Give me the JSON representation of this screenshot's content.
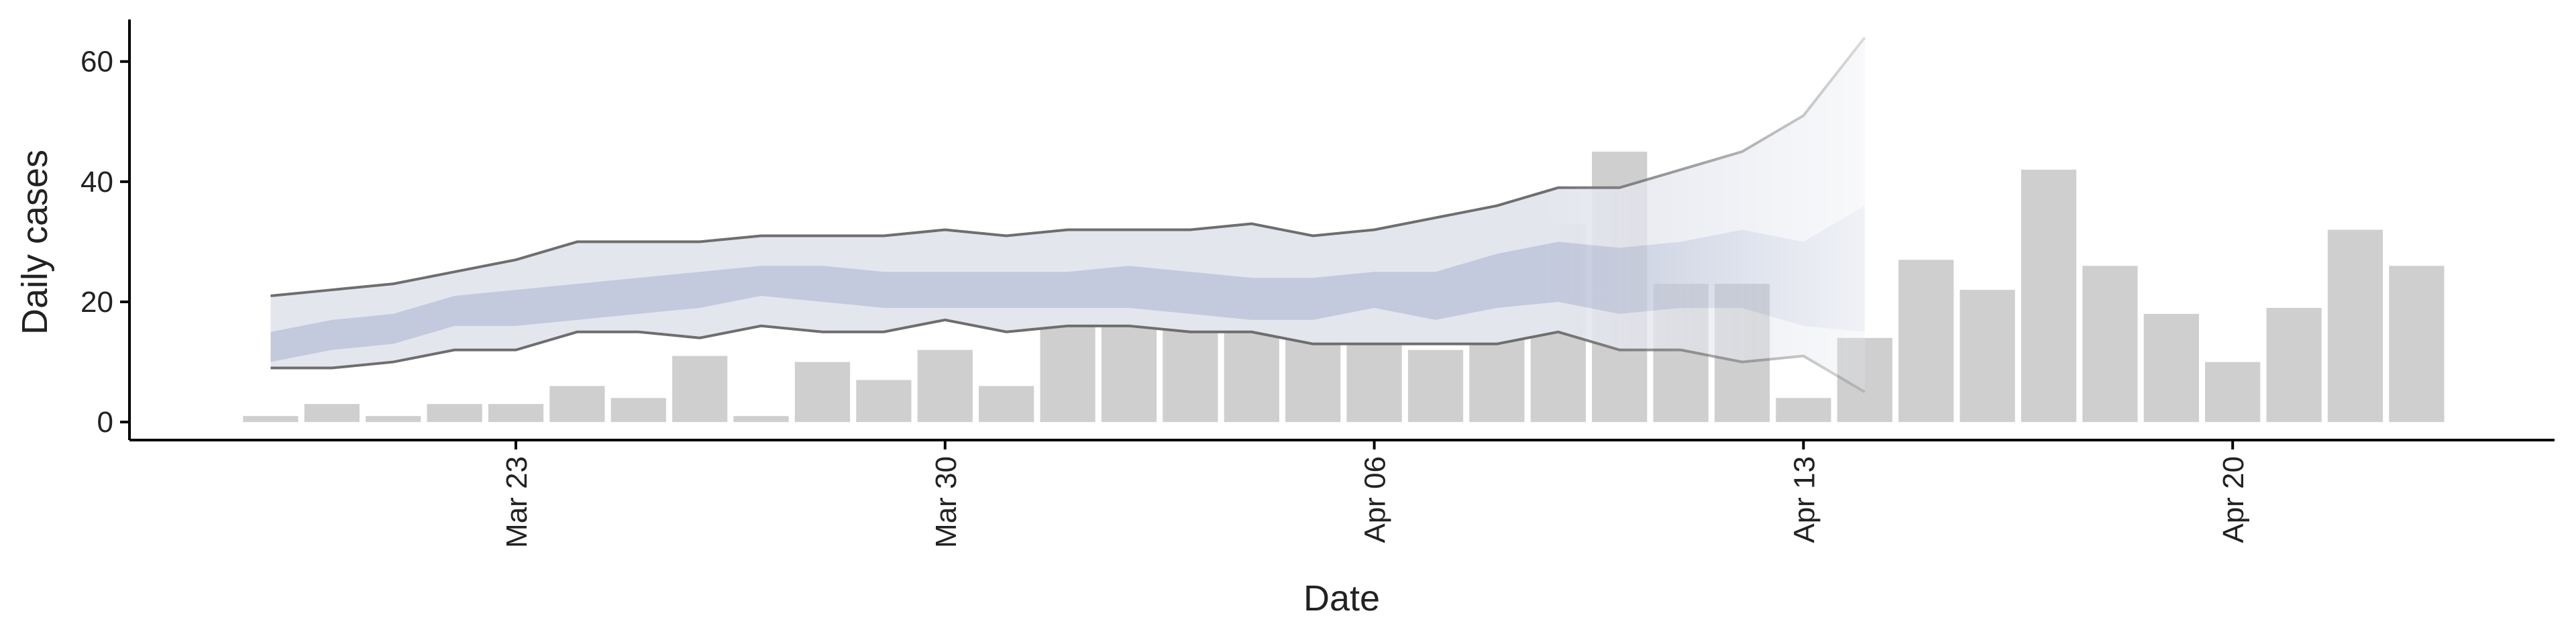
{
  "chart_data": {
    "type": "bar-band",
    "x_label": "Date",
    "y_label": "Daily cases",
    "categories": [
      "Mar 19",
      "Mar 20",
      "Mar 21",
      "Mar 22",
      "Mar 23",
      "Mar 24",
      "Mar 25",
      "Mar 26",
      "Mar 27",
      "Mar 28",
      "Mar 29",
      "Mar 30",
      "Mar 31",
      "Apr 01",
      "Apr 02",
      "Apr 03",
      "Apr 04",
      "Apr 05",
      "Apr 06",
      "Apr 07",
      "Apr 08",
      "Apr 09",
      "Apr 10",
      "Apr 11",
      "Apr 12",
      "Apr 13",
      "Apr 14",
      "Apr 15",
      "Apr 16",
      "Apr 17",
      "Apr 18",
      "Apr 19",
      "Apr 20",
      "Apr 21",
      "Apr 22",
      "Apr 23"
    ],
    "values": [
      1,
      3,
      1,
      3,
      3,
      6,
      4,
      11,
      1,
      10,
      7,
      12,
      6,
      20,
      23,
      28,
      26,
      27,
      27,
      12,
      16,
      33,
      45,
      23,
      23,
      4,
      14,
      27,
      22,
      42,
      26,
      18,
      10,
      19,
      32,
      26
    ],
    "color": "#cccccc",
    "outer_upper": [
      21,
      22,
      23,
      25,
      27,
      30,
      30,
      30,
      31,
      31,
      31,
      32,
      31,
      32,
      32,
      32,
      33,
      31,
      32,
      34,
      36,
      39,
      39,
      42,
      45,
      51,
      64,
      null,
      null,
      null,
      null,
      null,
      null,
      null,
      null,
      null
    ],
    "outer_lower": [
      9,
      9,
      10,
      12,
      12,
      15,
      15,
      14,
      16,
      15,
      15,
      17,
      15,
      16,
      16,
      15,
      15,
      13,
      13,
      13,
      13,
      15,
      12,
      12,
      10,
      11,
      5,
      null,
      null,
      null,
      null,
      null,
      null,
      null,
      null,
      null
    ],
    "inner_upper": [
      15,
      17,
      18,
      21,
      22,
      23,
      24,
      25,
      26,
      26,
      25,
      25,
      25,
      25,
      26,
      25,
      24,
      24,
      25,
      25,
      28,
      30,
      29,
      30,
      32,
      30,
      36,
      null,
      null,
      null,
      null,
      null,
      null,
      null,
      null,
      null
    ],
    "inner_lower": [
      10,
      12,
      13,
      16,
      16,
      17,
      18,
      19,
      21,
      20,
      19,
      19,
      19,
      19,
      19,
      18,
      17,
      17,
      19,
      17,
      19,
      20,
      18,
      19,
      19,
      16,
      15,
      null,
      null,
      null,
      null,
      null,
      null,
      null,
      null,
      null
    ],
    "outer_color": "#e4e6ee",
    "inner_color": "#c3cadd",
    "line_color": "#6e6e6e",
    "ylim": [
      -3,
      67
    ],
    "yticks": [
      0,
      20,
      40,
      60
    ],
    "xticks": [
      "Mar 23",
      "Mar 30",
      "Apr 06",
      "Apr 13",
      "Apr 20"
    ]
  }
}
